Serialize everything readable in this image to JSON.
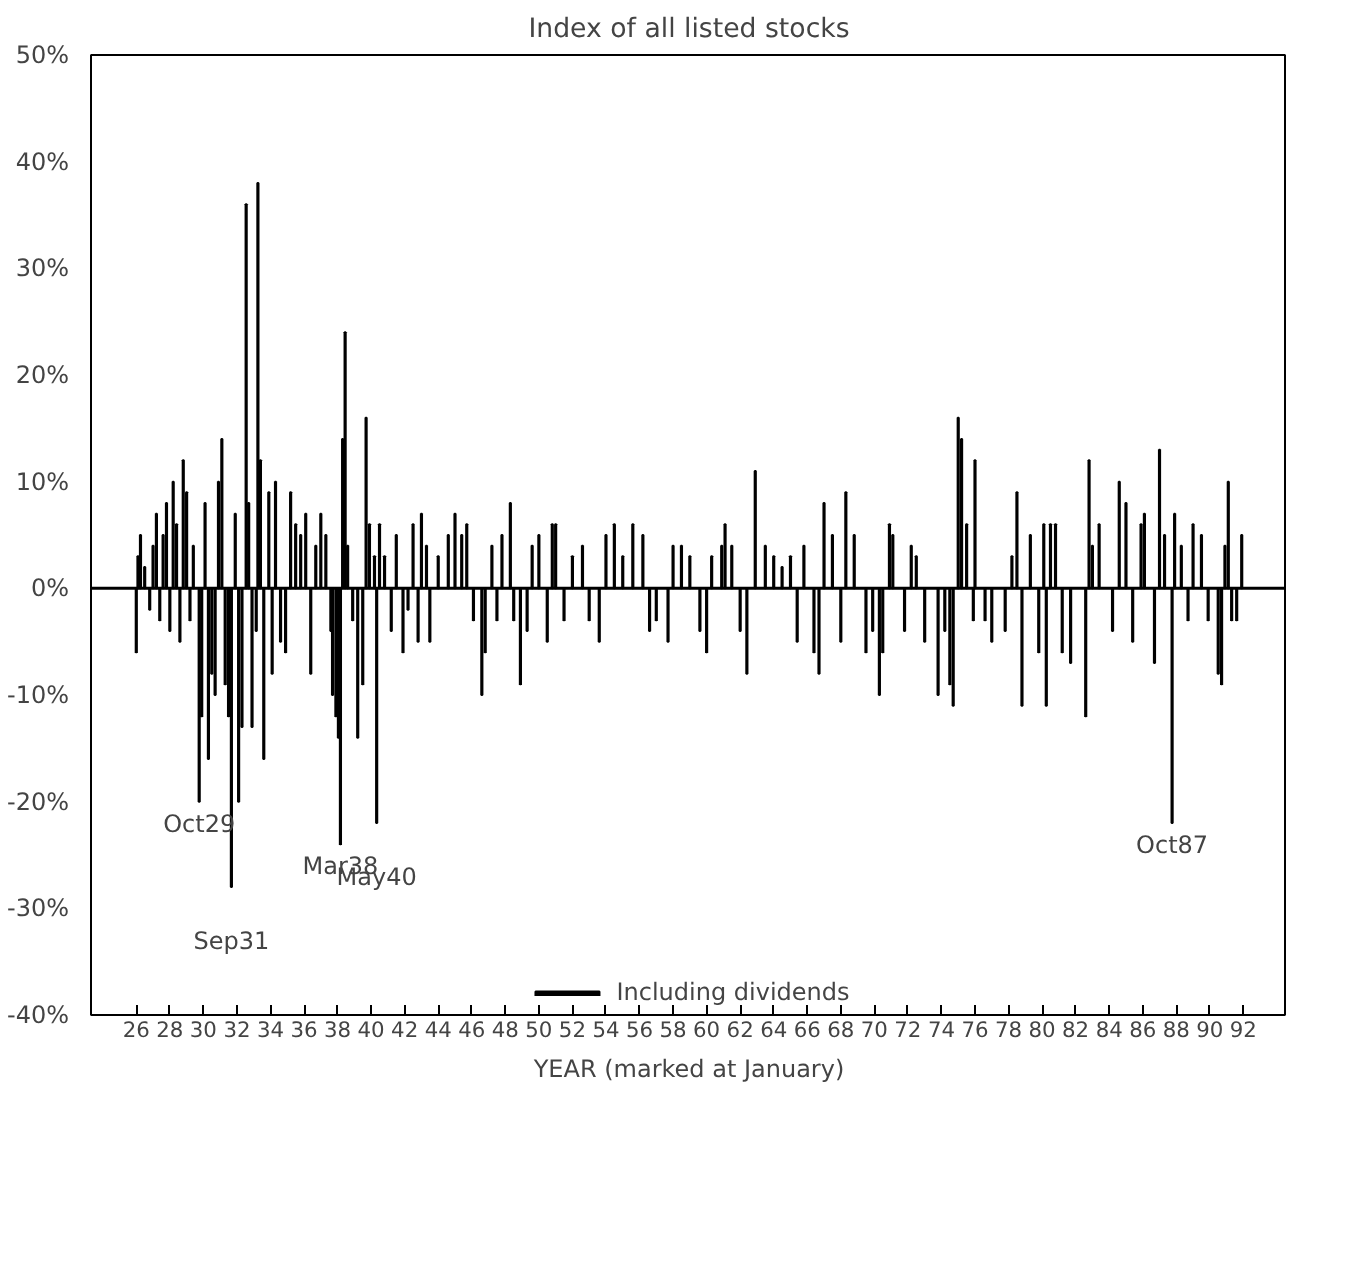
{
  "chart_data": {
    "type": "bar",
    "title": "Index of all listed stocks",
    "xlabel": "YEAR (marked at January)",
    "xlim": [
      23.3,
      94.6
    ],
    "ylim": [
      -40,
      50
    ],
    "xticks": [
      26,
      28,
      30,
      32,
      34,
      36,
      38,
      40,
      42,
      44,
      46,
      48,
      50,
      52,
      54,
      56,
      58,
      60,
      62,
      64,
      66,
      68,
      70,
      72,
      74,
      76,
      78,
      80,
      82,
      84,
      86,
      88,
      90,
      92
    ],
    "yticks": [
      {
        "value": -40,
        "label": "-40%"
      },
      {
        "value": -30,
        "label": "-30%"
      },
      {
        "value": -20,
        "label": "-20%"
      },
      {
        "value": -10,
        "label": "-10%"
      },
      {
        "value": 0,
        "label": "0%"
      },
      {
        "value": 10,
        "label": "10%"
      },
      {
        "value": 20,
        "label": "20%"
      },
      {
        "value": 30,
        "label": "30%"
      },
      {
        "value": 40,
        "label": "40%"
      },
      {
        "value": 50,
        "label": "50%"
      }
    ],
    "grid": false,
    "legend": "bottom",
    "ref_lines": [
      {
        "axis": "y",
        "value": 0,
        "color": "#000000"
      }
    ],
    "annotations": [
      {
        "text": "Oct29",
        "x": 29.75,
        "y": -20
      },
      {
        "text": "Sep31",
        "x": 31.67,
        "y": -28
      },
      {
        "text": "Mar38",
        "x": 38.17,
        "y": -24
      },
      {
        "text": "May40",
        "x": 40.33,
        "y": -22
      },
      {
        "text": "Oct87",
        "x": 87.75,
        "y": -22
      }
    ],
    "series": [
      {
        "name": "Including dividends",
        "color": "#000000",
        "x": [
          26.0,
          26.1,
          26.25,
          26.5,
          26.8,
          27.0,
          27.2,
          27.4,
          27.6,
          27.8,
          28.0,
          28.2,
          28.4,
          28.6,
          28.8,
          29.0,
          29.2,
          29.4,
          29.75,
          29.9,
          30.1,
          30.3,
          30.5,
          30.7,
          30.9,
          31.1,
          31.3,
          31.5,
          31.67,
          31.9,
          32.1,
          32.3,
          32.55,
          32.7,
          32.9,
          33.15,
          33.25,
          33.4,
          33.6,
          33.9,
          34.1,
          34.3,
          34.6,
          34.9,
          35.2,
          35.5,
          35.8,
          36.1,
          36.4,
          36.7,
          37.0,
          37.3,
          37.6,
          37.7,
          37.9,
          38.05,
          38.17,
          38.3,
          38.45,
          38.6,
          38.9,
          39.2,
          39.5,
          39.7,
          39.9,
          40.2,
          40.33,
          40.5,
          40.8,
          41.2,
          41.5,
          41.9,
          42.2,
          42.5,
          42.8,
          43.0,
          43.3,
          43.5,
          44.0,
          44.6,
          45.0,
          45.4,
          45.7,
          46.1,
          46.6,
          46.8,
          47.2,
          47.5,
          47.8,
          48.3,
          48.5,
          48.9,
          49.3,
          49.6,
          50.0,
          50.5,
          50.8,
          51.0,
          51.5,
          52.0,
          52.6,
          53.0,
          53.6,
          54.0,
          54.5,
          55.0,
          55.6,
          56.2,
          56.6,
          57.0,
          57.7,
          58.0,
          58.5,
          59.0,
          59.6,
          60.0,
          60.3,
          60.9,
          61.1,
          61.5,
          62.0,
          62.4,
          62.9,
          63.5,
          64.0,
          64.5,
          65.0,
          65.4,
          65.8,
          66.4,
          66.7,
          67.0,
          67.5,
          68.0,
          68.3,
          68.8,
          69.5,
          69.9,
          70.3,
          70.5,
          70.9,
          71.1,
          71.8,
          72.2,
          72.5,
          73.0,
          73.8,
          74.2,
          74.5,
          74.7,
          75.0,
          75.2,
          75.5,
          75.9,
          76.0,
          76.6,
          77.0,
          77.8,
          78.2,
          78.5,
          78.8,
          79.3,
          79.8,
          80.1,
          80.25,
          80.5,
          80.8,
          81.2,
          81.7,
          82.6,
          82.8,
          83.0,
          83.4,
          84.2,
          84.6,
          85.0,
          85.4,
          85.9,
          86.1,
          86.7,
          87.0,
          87.3,
          87.75,
          87.9,
          88.3,
          88.7,
          89.0,
          89.5,
          89.9,
          90.5,
          90.7,
          90.9,
          91.1,
          91.3,
          91.6,
          91.9
        ],
        "values": [
          -6,
          3,
          5,
          2,
          -2,
          4,
          7,
          -3,
          5,
          8,
          -4,
          10,
          6,
          -5,
          12,
          9,
          -3,
          4,
          -20,
          -12,
          8,
          -16,
          -8,
          -10,
          10,
          14,
          -9,
          -12,
          -28,
          7,
          -20,
          -13,
          36,
          8,
          -13,
          -4,
          38,
          12,
          -16,
          9,
          -8,
          10,
          -5,
          -6,
          9,
          6,
          5,
          7,
          -8,
          4,
          7,
          5,
          -4,
          -10,
          -12,
          -14,
          -24,
          14,
          24,
          4,
          -3,
          -14,
          -9,
          16,
          6,
          3,
          -22,
          6,
          3,
          -4,
          5,
          -6,
          -2,
          6,
          -5,
          7,
          4,
          -5,
          3,
          5,
          7,
          5,
          6,
          -3,
          -10,
          -6,
          4,
          -3,
          5,
          8,
          -3,
          -9,
          -4,
          4,
          5,
          -5,
          6,
          6,
          -3,
          3,
          4,
          -3,
          -5,
          5,
          6,
          3,
          6,
          5,
          -4,
          -3,
          -5,
          4,
          4,
          3,
          -4,
          -6,
          3,
          4,
          6,
          4,
          -4,
          -8,
          11,
          4,
          3,
          2,
          3,
          -5,
          4,
          -6,
          -8,
          8,
          5,
          -5,
          9,
          5,
          -6,
          -4,
          -10,
          -6,
          6,
          5,
          -4,
          4,
          3,
          -5,
          -10,
          -4,
          -9,
          -11,
          16,
          14,
          6,
          -3,
          12,
          -3,
          -5,
          -4,
          3,
          9,
          -11,
          5,
          -6,
          6,
          -11,
          6,
          6,
          -6,
          -7,
          -12,
          12,
          4,
          6,
          -4,
          10,
          8,
          -5,
          6,
          7,
          -7,
          13,
          5,
          -22,
          7,
          4,
          -3,
          6,
          5,
          -3,
          -8,
          -9,
          4,
          10,
          -3,
          -3,
          5
        ]
      }
    ]
  }
}
